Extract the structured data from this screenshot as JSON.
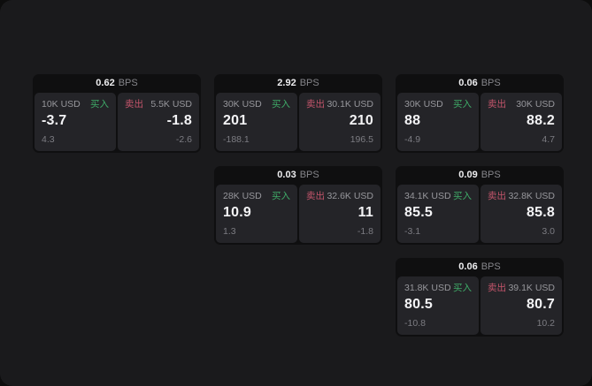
{
  "labels": {
    "buy": "买入",
    "sell": "卖出",
    "bps": "BPS"
  },
  "colors": {
    "buy_accent": "#3fab68",
    "sell_accent": "#c4556b",
    "surface_bg": "#1a1a1c",
    "card_bg": "#0f0f10",
    "panel_bg": "#242428"
  },
  "cards": [
    {
      "bps": "0.62",
      "buy": {
        "amount": "10K USD",
        "value": "-3.7",
        "delta": "4.3"
      },
      "sell": {
        "amount": "5.5K USD",
        "value": "-1.8",
        "delta": "-2.6"
      }
    },
    {
      "bps": "2.92",
      "buy": {
        "amount": "30K USD",
        "value": "201",
        "delta": "-188.1"
      },
      "sell": {
        "amount": "30.1K USD",
        "value": "210",
        "delta": "196.5"
      }
    },
    {
      "bps": "0.06",
      "buy": {
        "amount": "30K USD",
        "value": "88",
        "delta": "-4.9"
      },
      "sell": {
        "amount": "30K USD",
        "value": "88.2",
        "delta": "4.7"
      }
    },
    {
      "bps": "0.03",
      "buy": {
        "amount": "28K USD",
        "value": "10.9",
        "delta": "1.3"
      },
      "sell": {
        "amount": "32.6K USD",
        "value": "11",
        "delta": "-1.8"
      }
    },
    {
      "bps": "0.09",
      "buy": {
        "amount": "34.1K USD",
        "value": "85.5",
        "delta": "-3.1"
      },
      "sell": {
        "amount": "32.8K USD",
        "value": "85.8",
        "delta": "3.0"
      }
    },
    {
      "bps": "0.06",
      "buy": {
        "amount": "31.8K USD",
        "value": "80.5",
        "delta": "-10.8"
      },
      "sell": {
        "amount": "39.1K USD",
        "value": "80.7",
        "delta": "10.2"
      }
    }
  ]
}
